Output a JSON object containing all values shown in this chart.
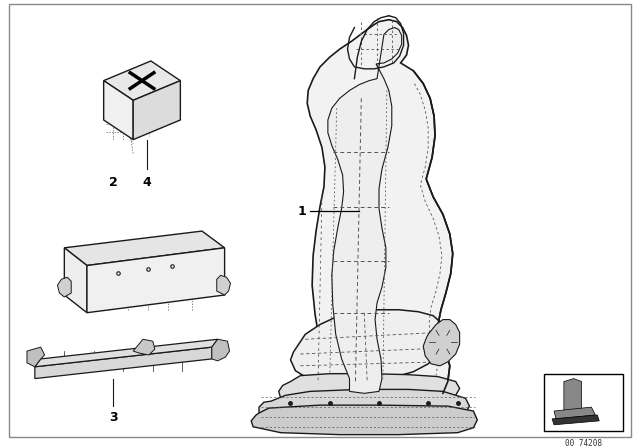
{
  "bg_color": "#ffffff",
  "line_color": "#1a1a1a",
  "dashed_color": "#555555",
  "part_number": "00 74208",
  "seat_fill": "#f5f5f5",
  "seat_fill2": "#ebebeb",
  "border_color": "#aaaaaa"
}
